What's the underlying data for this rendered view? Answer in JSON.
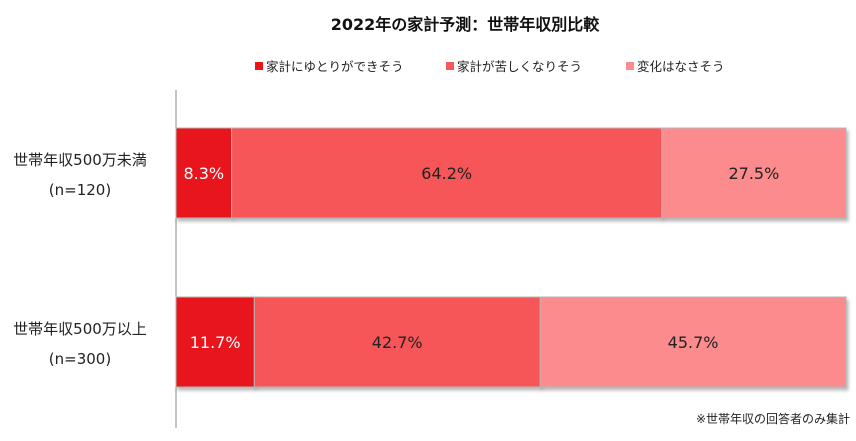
{
  "chart_data": {
    "type": "bar",
    "orientation": "horizontal",
    "stacked": true,
    "percent": true,
    "title": "2022年の家計予測：世帯年収別比較",
    "categories": [
      [
        "世帯年収500万未満",
        "(n=120)"
      ],
      [
        "世帯年収500万以上",
        "(n=300)"
      ]
    ],
    "series": [
      {
        "name": "家計にゆとりができそう",
        "color": "#e8151b",
        "values": [
          8.3,
          11.7
        ],
        "labels": [
          "8.3%",
          "11.7%"
        ]
      },
      {
        "name": "家計が苦しくなりそう",
        "color": "#f65759",
        "values": [
          64.2,
          42.7
        ],
        "labels": [
          "64.2%",
          "42.7%"
        ]
      },
      {
        "name": "変化はなさそう",
        "color": "#fb8b8c",
        "values": [
          27.5,
          45.7
        ],
        "labels": [
          "27.5%",
          "45.7%"
        ]
      }
    ],
    "label_colors": [
      "#ffffff",
      "#222222",
      "#222222"
    ],
    "xlim": [
      0,
      100
    ],
    "legend_position": "top",
    "grid": false,
    "footnote": "※世帯年収の回答者のみ集計"
  }
}
